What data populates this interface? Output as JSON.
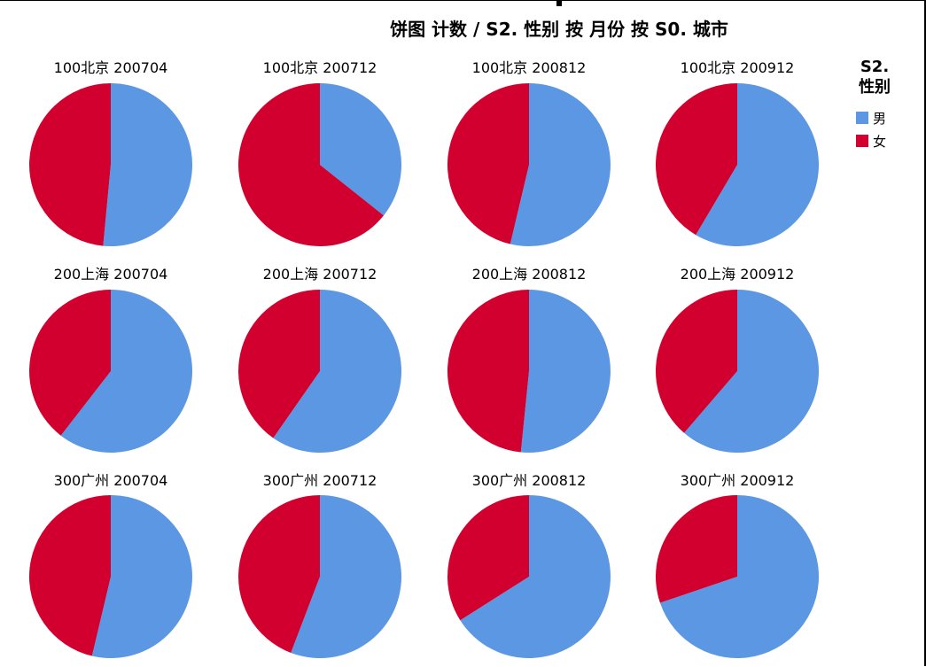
{
  "chart_data": {
    "type": "pie",
    "title": "饼图 计数 / S2. 性别 按 月份 按 S0. 城市",
    "legend": {
      "title_line1": "S2.",
      "title_line2": "性别",
      "entries": [
        "男",
        "女"
      ],
      "placement": "right"
    },
    "colors": {
      "男": "#5b97e3",
      "女": "#d2002e"
    },
    "panels": [
      {
        "label": "100北京 200704",
        "values": [
          51.5,
          48.5
        ]
      },
      {
        "label": "100北京 200712",
        "values": [
          35.7,
          64.3
        ]
      },
      {
        "label": "100北京 200812",
        "values": [
          53.7,
          46.3
        ]
      },
      {
        "label": "100北京 200912",
        "values": [
          58.5,
          41.5
        ]
      },
      {
        "label": "200上海 200704",
        "values": [
          60.5,
          39.5
        ]
      },
      {
        "label": "200上海 200712",
        "values": [
          59.7,
          40.3
        ]
      },
      {
        "label": "200上海 200812",
        "values": [
          51.6,
          48.4
        ]
      },
      {
        "label": "200上海 200912",
        "values": [
          61.3,
          38.7
        ]
      },
      {
        "label": "300广州 200704",
        "values": [
          53.7,
          46.3
        ]
      },
      {
        "label": "300广州 200712",
        "values": [
          55.8,
          44.2
        ]
      },
      {
        "label": "300广州 200812",
        "values": [
          66.0,
          34.0
        ]
      },
      {
        "label": "300广州 200912",
        "values": [
          69.8,
          30.2
        ]
      }
    ]
  }
}
